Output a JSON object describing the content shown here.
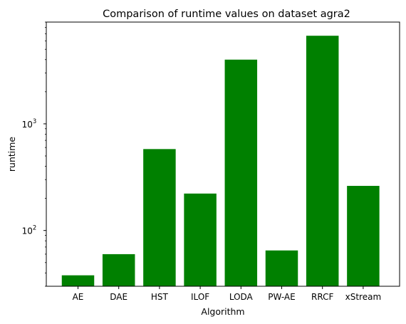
{
  "chart_data": {
    "type": "bar",
    "title": "Comparison of runtime values on dataset agra2",
    "xlabel": "Algorithm",
    "ylabel": "runtime",
    "yscale": "log",
    "ylim": [
      30,
      9000
    ],
    "categories": [
      "AE",
      "DAE",
      "HST",
      "ILOF",
      "LODA",
      "PW-AE",
      "RRCF",
      "xStream"
    ],
    "values": [
      38,
      60,
      580,
      222,
      4000,
      65,
      6700,
      262
    ],
    "bar_color": "#008000",
    "yticks": [
      {
        "value": 100,
        "base": "10",
        "exp": "2"
      },
      {
        "value": 1000,
        "base": "10",
        "exp": "3"
      }
    ],
    "grid": false,
    "legend": "none"
  }
}
